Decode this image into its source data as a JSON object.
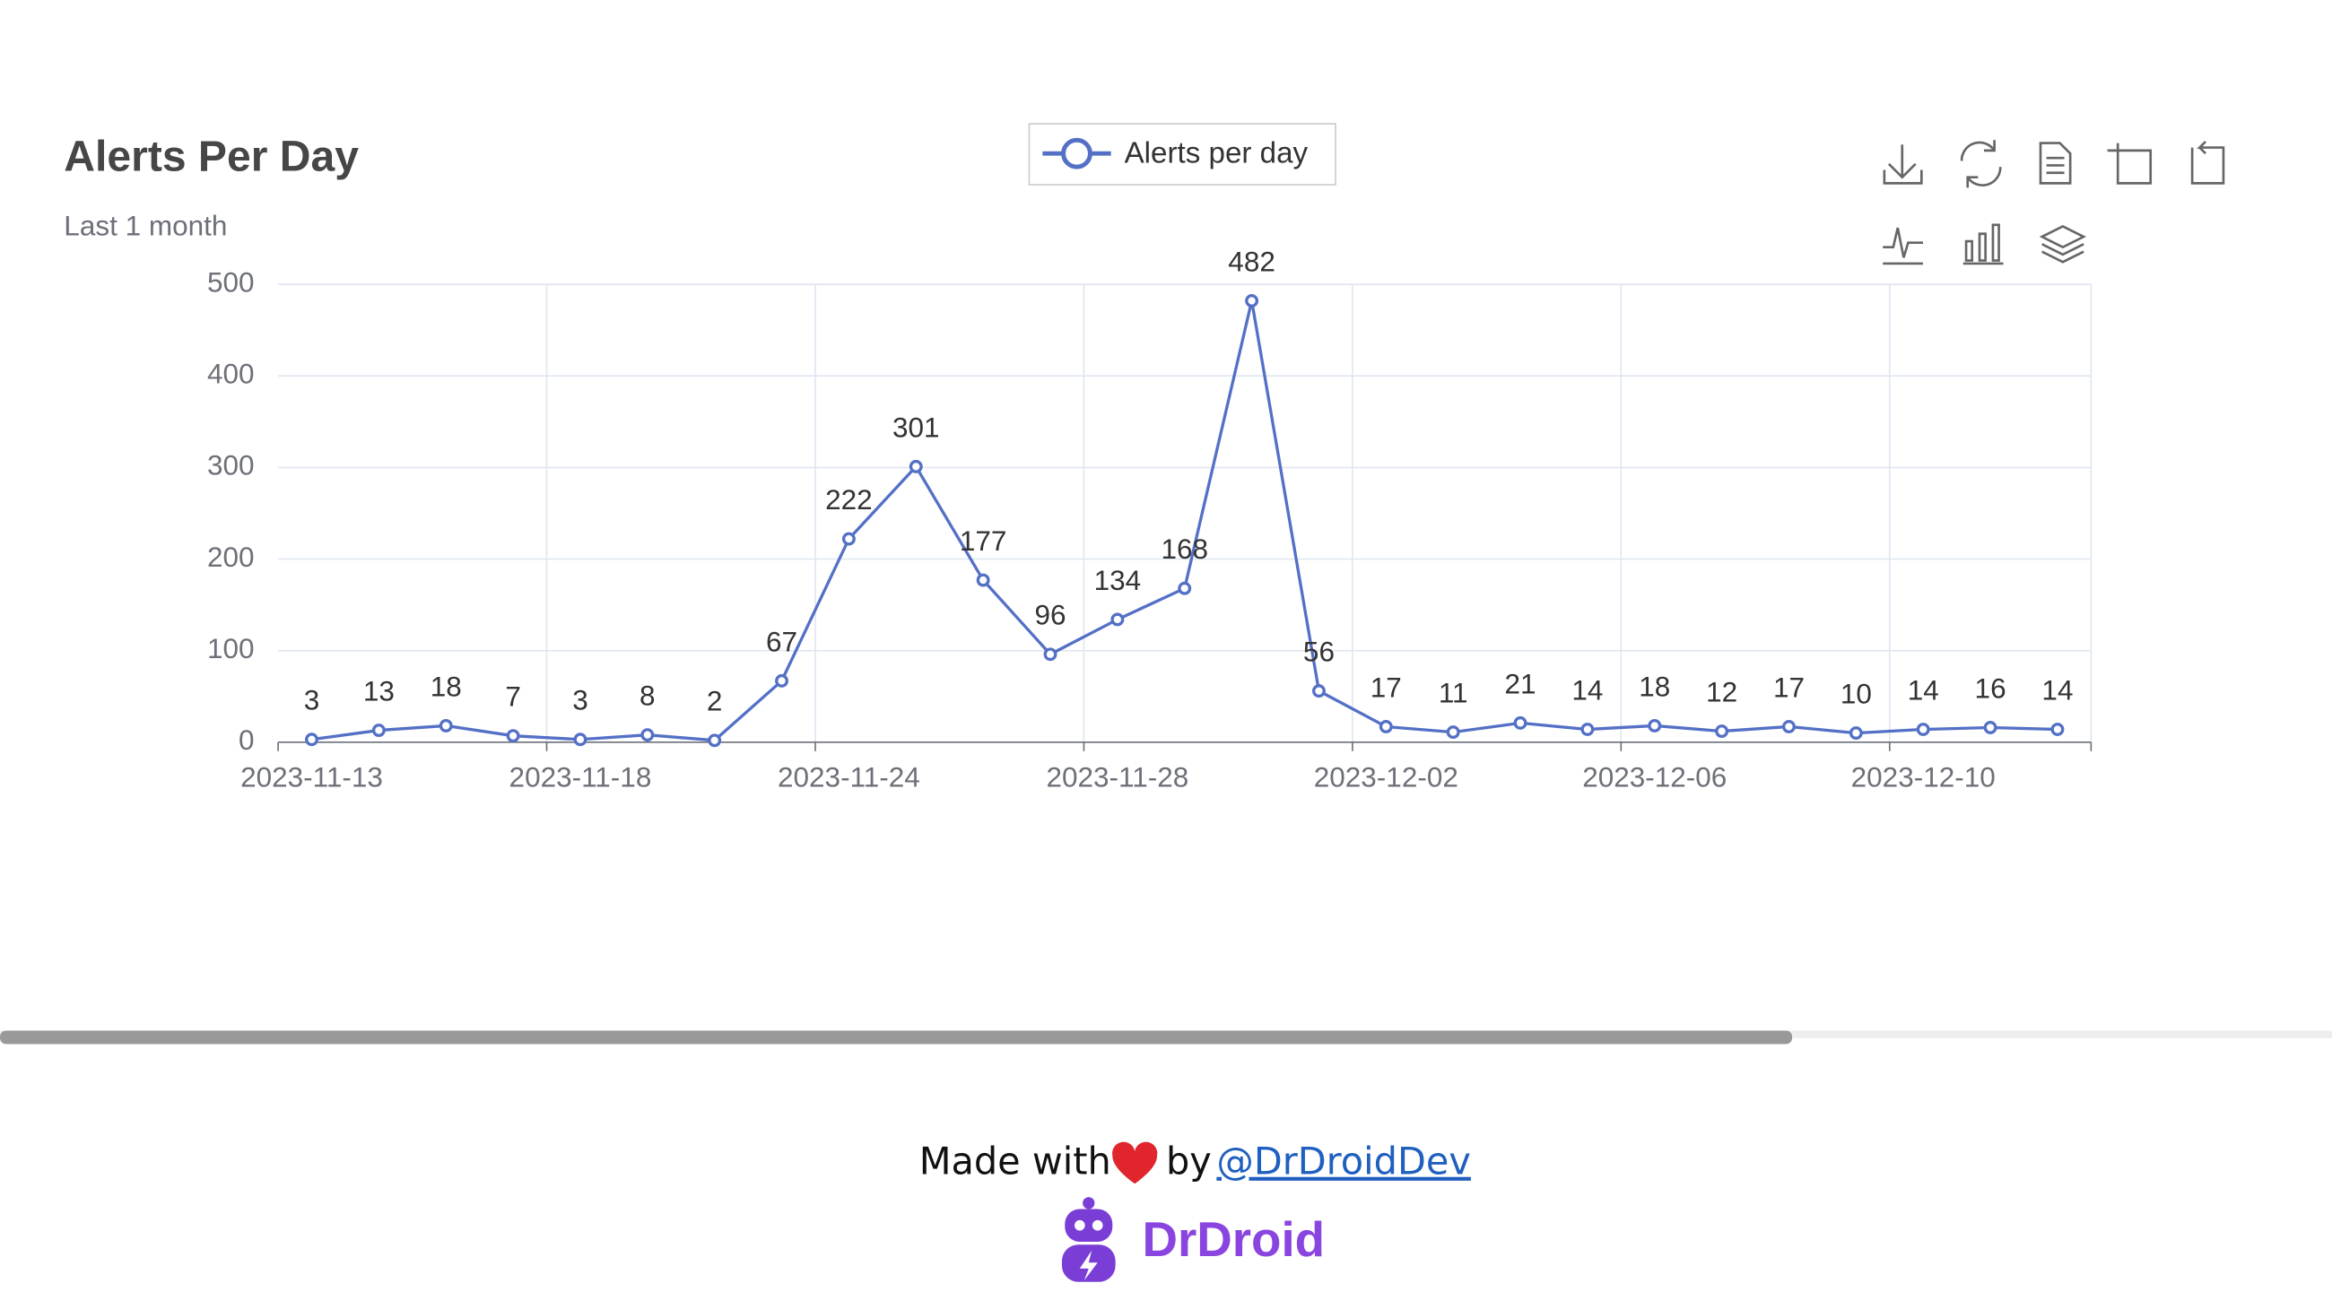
{
  "chart_data": {
    "type": "line",
    "title": "Alerts Per Day",
    "subtitle": "Last 1 month",
    "categories": [
      "2023-11-13",
      null,
      null,
      null,
      "2023-11-18",
      null,
      null,
      null,
      "2023-11-24",
      null,
      null,
      null,
      "2023-11-28",
      null,
      null,
      null,
      "2023-12-02",
      null,
      null,
      null,
      "2023-12-06",
      null,
      null,
      null,
      "2023-12-10",
      null,
      null
    ],
    "series": [
      {
        "name": "Alerts per day",
        "color": "#5470c6",
        "values": [
          3,
          13,
          18,
          7,
          3,
          8,
          2,
          67,
          222,
          301,
          177,
          96,
          134,
          168,
          482,
          56,
          17,
          11,
          21,
          14,
          18,
          12,
          17,
          10,
          14,
          16,
          14
        ]
      }
    ],
    "ylim": [
      0,
      500
    ],
    "yticks": [
      0,
      100,
      200,
      300,
      400,
      500
    ],
    "grid": true,
    "legend": "top"
  },
  "footer": {
    "made_with": "Made with",
    "by": "by",
    "link": "@DrDroidDev",
    "brand": "DrDroid"
  }
}
